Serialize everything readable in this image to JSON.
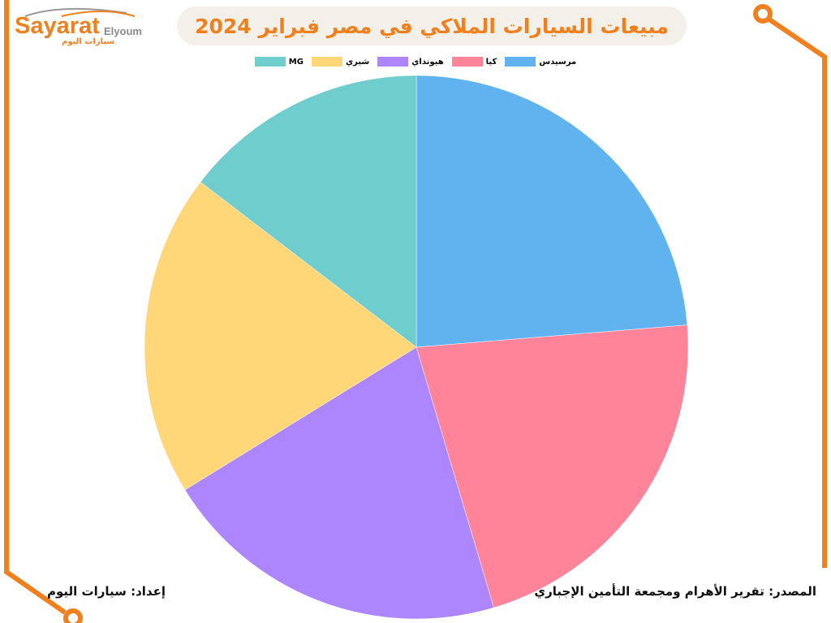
{
  "title": "مبيعات السيارات الملاكي في مصر فبراير 2024",
  "logo": {
    "main": "Sayarat",
    "sub": "Elyoum",
    "arabic": "سيارات اليوم"
  },
  "footer": {
    "source": "المصدر: تقرير الأهرام ومجمعة التأمين الإجباري",
    "prepared_by": "إعداد: سيارات اليوم"
  },
  "colors": {
    "accent": "#f0801e"
  },
  "chart_data": {
    "type": "pie",
    "title": "مبيعات السيارات الملاكي في مصر فبراير 2024",
    "legend_position": "top",
    "categories": [
      "مرسيدس",
      "كيا",
      "هيونداي",
      "شيري",
      "MG"
    ],
    "values_percent": [
      23.7,
      21.7,
      20.8,
      19.2,
      14.6
    ],
    "colors": [
      "#60b3ef",
      "#ff8399",
      "#ad86fd",
      "#ffd778",
      "#6fcdcd"
    ]
  }
}
